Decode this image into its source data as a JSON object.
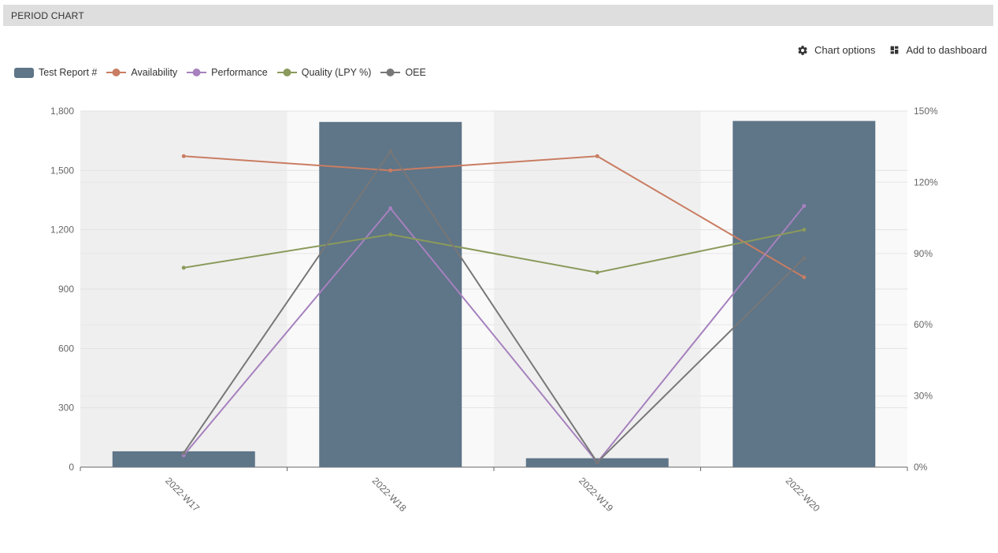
{
  "panel": {
    "title": "PERIOD CHART"
  },
  "toolbar": {
    "chart_options_label": "Chart options",
    "add_dashboard_label": "Add to dashboard"
  },
  "colors": {
    "bar": "#5f7588",
    "availability": "#c97d62",
    "performance": "#a681be",
    "quality": "#8a9a5b",
    "oee": "#777777",
    "band_dark": "#efefef",
    "band_light": "#f9f9f9"
  },
  "chart_data": {
    "type": "bar",
    "categories": [
      "2022-W17",
      "2022-W18",
      "2022-W19",
      "2022-W20"
    ],
    "series": [
      {
        "name": "Test Report #",
        "type": "bar",
        "axis": "left",
        "values": [
          80,
          1745,
          45,
          1750
        ]
      },
      {
        "name": "Availability",
        "type": "line",
        "axis": "right",
        "values": [
          131,
          125,
          131,
          80
        ]
      },
      {
        "name": "Performance",
        "type": "line",
        "axis": "right",
        "values": [
          5,
          109,
          2,
          110
        ]
      },
      {
        "name": "Quality (LPY %)",
        "type": "line",
        "axis": "right",
        "values": [
          84,
          98,
          82,
          100
        ]
      },
      {
        "name": "OEE",
        "type": "line",
        "axis": "right",
        "values": [
          6,
          133,
          2,
          88
        ]
      }
    ],
    "y_left": {
      "ticks": [
        "0",
        "300",
        "600",
        "900",
        "1,200",
        "1,500",
        "1,800"
      ],
      "ylim": [
        0,
        1800
      ]
    },
    "y_right": {
      "ticks": [
        "0%",
        "30%",
        "60%",
        "90%",
        "120%",
        "150%"
      ],
      "ylim": [
        0,
        150
      ]
    },
    "legend_position": "top-left",
    "grid": true
  }
}
